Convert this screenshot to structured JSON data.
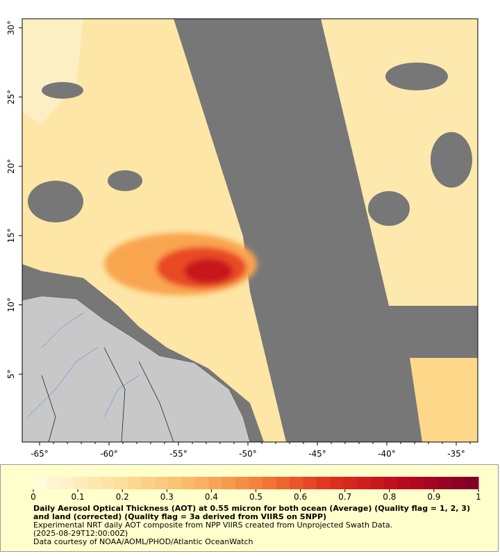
{
  "map": {
    "lon_range": [
      -66.25,
      -33.45
    ],
    "lat_range": [
      0.1,
      30.65
    ],
    "lon_ticks": [
      {
        "value": -65,
        "label": "-65°"
      },
      {
        "value": -60,
        "label": "-60°"
      },
      {
        "value": -55,
        "label": "-55°"
      },
      {
        "value": -50,
        "label": "-50°"
      },
      {
        "value": -45,
        "label": "-45°"
      },
      {
        "value": -40,
        "label": "-40°"
      },
      {
        "value": -35,
        "label": "-35°"
      }
    ],
    "lat_ticks": [
      {
        "value": 5,
        "label": "5°"
      },
      {
        "value": 10,
        "label": "10°"
      },
      {
        "value": 15,
        "label": "15°"
      },
      {
        "value": 20,
        "label": "20°"
      },
      {
        "value": 25,
        "label": "25°"
      },
      {
        "value": 30,
        "label": "30°"
      }
    ]
  },
  "colorbar": {
    "range": [
      0,
      1
    ],
    "ticks": [
      0,
      0.1,
      0.2,
      0.3,
      0.4,
      0.5,
      0.6,
      0.7,
      0.8,
      0.9,
      1
    ]
  },
  "caption": {
    "title": "Daily Aerosol Optical Thickness (AOT) at 0.55 micron for both ocean (Average) (Quality flag = 1, 2, 3) and land (corrected) (Quality flag = 3a derived from VIIRS on SNPP)",
    "lines": [
      "Experimental NRT daily AOT composite from NPP VIIRS created from Unprojected Swath Data.",
      "(2025-08-29T12:00:00Z)",
      "Data courtesy of NOAA/AOML/PHOD/Atlantic OceanWatch"
    ]
  }
}
